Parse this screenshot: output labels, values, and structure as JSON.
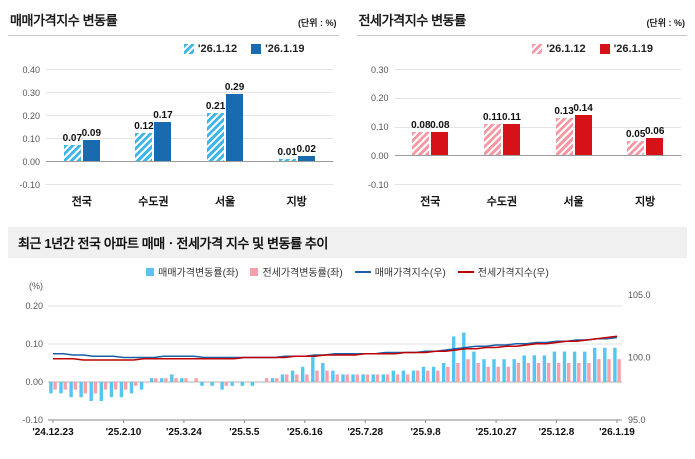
{
  "chart_data": [
    {
      "id": "sale-price-change-bar",
      "type": "bar",
      "title": "매매가격지수 변동률",
      "unit_label": "(단위 : %)",
      "categories": [
        "전국",
        "수도권",
        "서울",
        "지방"
      ],
      "series": [
        {
          "name": "'26.1.12",
          "values": [
            0.07,
            0.12,
            0.21,
            0.01
          ],
          "value_labels": [
            "0.07",
            "0.12",
            "0.21",
            "0.01"
          ],
          "color": "#3fb6e8",
          "hatch": true
        },
        {
          "name": "'26.1.19",
          "values": [
            0.09,
            0.17,
            0.29,
            0.02
          ],
          "value_labels": [
            "0.09",
            "0.17",
            "0.29",
            "0.02"
          ],
          "color": "#1a6ab0",
          "hatch": false
        }
      ],
      "ylim": [
        -0.1,
        0.4
      ],
      "y_tick_values": [
        0.4,
        0.3,
        0.2,
        0.1,
        0,
        -0.1
      ],
      "y_tick_labels": [
        "0.40",
        "0.30",
        "0.20",
        "0.10",
        "0.00",
        "-0.10"
      ],
      "grid": true,
      "legend_position": "top"
    },
    {
      "id": "jeonse-price-change-bar",
      "type": "bar",
      "title": "전세가격지수 변동률",
      "unit_label": "(단위 : %)",
      "categories": [
        "전국",
        "수도권",
        "서울",
        "지방"
      ],
      "series": [
        {
          "name": "'26.1.12",
          "values": [
            0.08,
            0.11,
            0.13,
            0.05
          ],
          "value_labels": [
            "0.08",
            "0.11",
            "0.13",
            "0.05"
          ],
          "color": "#f59aa5",
          "hatch": true
        },
        {
          "name": "'26.1.19",
          "values": [
            0.08,
            0.11,
            0.14,
            0.06
          ],
          "value_labels": [
            "0.08",
            "0.11",
            "0.14",
            "0.06"
          ],
          "color": "#d41217",
          "hatch": false
        }
      ],
      "ylim": [
        -0.1,
        0.3
      ],
      "y_tick_values": [
        0.3,
        0.2,
        0.1,
        0,
        -0.1
      ],
      "y_tick_labels": [
        "0.30",
        "0.20",
        "0.10",
        "0.00",
        "-0.10"
      ],
      "grid": true,
      "legend_position": "top"
    },
    {
      "id": "trend-combo",
      "type": "combo-bar-line",
      "title": "최근 1년간 전국 아파트 매매ㆍ전세가격 지수 및 변동률 추이",
      "left_axis": {
        "label": "(%)",
        "range": [
          -0.1,
          0.229
        ],
        "tick_values": [
          0.2,
          0.1,
          0,
          -0.1
        ],
        "tick_labels": [
          "0.20",
          "0.10",
          "0.00",
          "-0.10"
        ]
      },
      "right_axis": {
        "range": [
          95,
          105
        ],
        "tick_values": [
          105,
          100,
          95
        ],
        "tick_labels": [
          "105.0",
          "100.0",
          "95.0"
        ]
      },
      "x_tick_labels": [
        "'24.12.23",
        "'25.2.10",
        "'25.3.24",
        "'25.5.5",
        "'25.6.16",
        "'25.7.28",
        "'25.9.8",
        "'25.10.27",
        "'25.12.8",
        "'26.1.19"
      ],
      "x_tick_positions": [
        0,
        7,
        13,
        19,
        25,
        31,
        37,
        44,
        50,
        56
      ],
      "bar_series": [
        {
          "name": "매매가격변동률(좌)",
          "axis": "left",
          "color": "#55c6f2",
          "values": [
            -0.03,
            -0.03,
            -0.04,
            -0.04,
            -0.05,
            -0.05,
            -0.04,
            -0.04,
            -0.03,
            -0.02,
            0.01,
            0.01,
            0.02,
            0.01,
            0,
            -0.01,
            -0.01,
            -0.02,
            -0.01,
            -0.01,
            -0.01,
            0,
            0.01,
            0.02,
            0.03,
            0.04,
            0.07,
            0.05,
            0.03,
            0.02,
            0.02,
            0.02,
            0.02,
            0.02,
            0.03,
            0.03,
            0.03,
            0.04,
            0.04,
            0.05,
            0.12,
            0.13,
            0.08,
            0.06,
            0.06,
            0.06,
            0.06,
            0.07,
            0.07,
            0.07,
            0.08,
            0.08,
            0.08,
            0.08,
            0.09,
            0.09,
            0.09
          ]
        },
        {
          "name": "전세가격변동률(좌)",
          "axis": "left",
          "color": "#f6a0ac",
          "values": [
            -0.02,
            -0.02,
            -0.02,
            -0.03,
            -0.03,
            -0.02,
            -0.02,
            -0.02,
            -0.01,
            0,
            0.01,
            0.01,
            0.01,
            0.01,
            0.01,
            0,
            0,
            -0.01,
            0,
            0,
            0,
            0.01,
            0.01,
            0.02,
            0.02,
            0.02,
            0.03,
            0.03,
            0.02,
            0.02,
            0.02,
            0.02,
            0.02,
            0.02,
            0.02,
            0.02,
            0.03,
            0.03,
            0.03,
            0.04,
            0.05,
            0.06,
            0.05,
            0.04,
            0.04,
            0.04,
            0.05,
            0.05,
            0.05,
            0.05,
            0.05,
            0.05,
            0.05,
            0.05,
            0.06,
            0.06,
            0.06
          ]
        }
      ],
      "line_series": [
        {
          "name": "매매가격지수(우)",
          "axis": "right",
          "color": "#1a5fa8",
          "values": [
            100.3,
            100.3,
            100.2,
            100.2,
            100.1,
            100.1,
            100.1,
            100,
            100,
            100,
            100,
            100.1,
            100.1,
            100.1,
            100.1,
            100,
            100,
            100,
            100,
            100,
            100,
            100,
            100,
            100.1,
            100.1,
            100.1,
            100.2,
            100.2,
            100.3,
            100.3,
            100.3,
            100.3,
            100.3,
            100.4,
            100.4,
            100.4,
            100.4,
            100.5,
            100.5,
            100.6,
            100.7,
            100.8,
            100.9,
            100.9,
            101,
            101,
            101.1,
            101.1,
            101.2,
            101.2,
            101.3,
            101.3,
            101.4,
            101.4,
            101.5,
            101.5,
            101.6
          ]
        },
        {
          "name": "전세가격지수(우)",
          "axis": "right",
          "color": "#c00000",
          "values": [
            99.9,
            99.9,
            99.9,
            99.8,
            99.8,
            99.8,
            99.8,
            99.8,
            99.8,
            99.9,
            99.9,
            99.9,
            99.9,
            99.9,
            99.9,
            99.9,
            99.9,
            99.9,
            99.9,
            100,
            100,
            100,
            100,
            100,
            100.1,
            100.1,
            100.1,
            100.2,
            100.2,
            100.2,
            100.2,
            100.3,
            100.3,
            100.3,
            100.3,
            100.4,
            100.4,
            100.4,
            100.5,
            100.5,
            100.6,
            100.7,
            100.7,
            100.8,
            100.8,
            100.9,
            100.9,
            101,
            101.1,
            101.1,
            101.2,
            101.3,
            101.3,
            101.4,
            101.5,
            101.6,
            101.7
          ]
        }
      ],
      "grid": true,
      "legend_position": "top"
    }
  ]
}
